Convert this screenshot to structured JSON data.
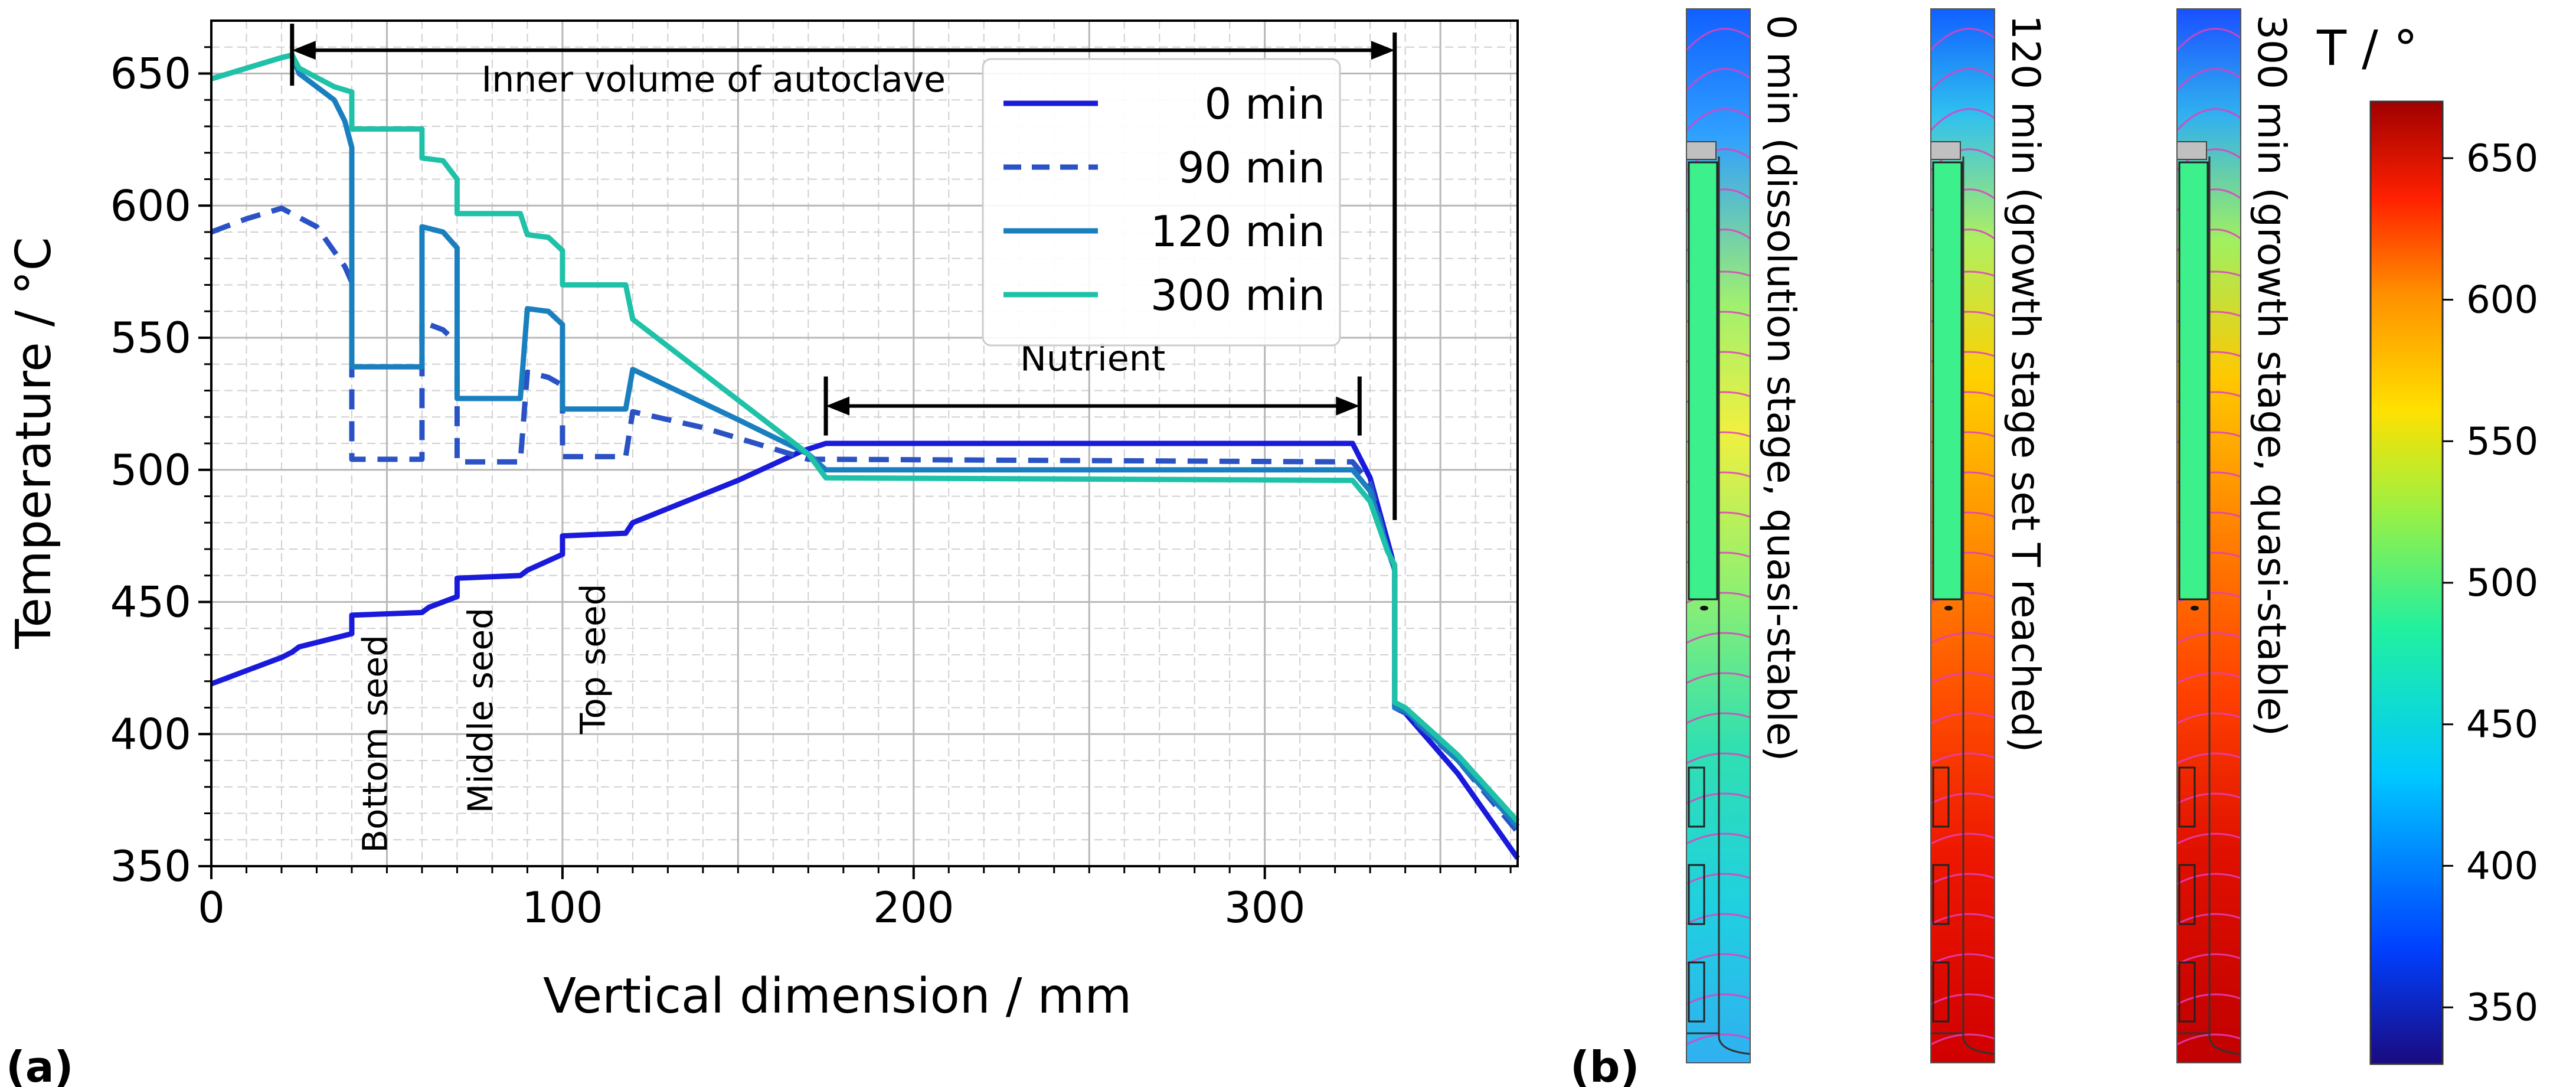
{
  "panel_a": {
    "label": "(a)",
    "chart_data": {
      "type": "line",
      "xlabel": "Vertical dimension / mm",
      "ylabel": "Temperature / °C",
      "xlim": [
        0,
        372
      ],
      "ylim": [
        350,
        670
      ],
      "xticks": [
        0,
        100,
        200,
        300
      ],
      "yticks": [
        350,
        400,
        450,
        500,
        550,
        600,
        650
      ],
      "grid": true,
      "legend_position": "top-right",
      "series": [
        {
          "name": "0 min",
          "color": "#1a1adb",
          "dash": "solid",
          "points": [
            [
              0,
              419
            ],
            [
              10,
              424
            ],
            [
              20,
              429
            ],
            [
              23,
              431
            ],
            [
              25,
              433
            ],
            [
              40,
              438
            ],
            [
              40,
              445
            ],
            [
              60,
              446
            ],
            [
              62,
              448
            ],
            [
              70,
              452
            ],
            [
              70,
              459
            ],
            [
              88,
              460
            ],
            [
              90,
              462
            ],
            [
              100,
              468
            ],
            [
              100,
              475
            ],
            [
              118,
              476
            ],
            [
              120,
              480
            ],
            [
              150,
              496
            ],
            [
              168,
              507
            ],
            [
              175,
              510
            ],
            [
              325,
              510
            ],
            [
              330,
              497
            ],
            [
              336,
              468
            ],
            [
              337,
              462
            ],
            [
              337,
              410
            ],
            [
              340,
              408
            ],
            [
              355,
              385
            ],
            [
              372,
              353
            ]
          ]
        },
        {
          "name": "90 min",
          "color": "#2a52c4",
          "dash": "dashed",
          "points": [
            [
              0,
              590
            ],
            [
              10,
              595
            ],
            [
              20,
              599
            ],
            [
              30,
              592
            ],
            [
              38,
              577
            ],
            [
              40,
              571
            ],
            [
              40,
              504
            ],
            [
              60,
              504
            ],
            [
              60,
              556
            ],
            [
              66,
              553
            ],
            [
              70,
              548
            ],
            [
              70,
              503
            ],
            [
              88,
              503
            ],
            [
              90,
              537
            ],
            [
              96,
              535
            ],
            [
              100,
              532
            ],
            [
              100,
              505
            ],
            [
              118,
              505
            ],
            [
              120,
              522
            ],
            [
              140,
              516
            ],
            [
              160,
              508
            ],
            [
              170,
              504
            ],
            [
              175,
              504
            ],
            [
              325,
              503
            ],
            [
              330,
              495
            ],
            [
              335,
              470
            ],
            [
              337,
              462
            ],
            [
              337,
              410
            ],
            [
              340,
              408
            ],
            [
              355,
              390
            ],
            [
              372,
              363
            ]
          ]
        },
        {
          "name": "120 min",
          "color": "#1a7fbf",
          "dash": "solid",
          "points": [
            [
              0,
              648
            ],
            [
              10,
              652
            ],
            [
              20,
              656
            ],
            [
              23,
              657
            ],
            [
              25,
              650
            ],
            [
              35,
              640
            ],
            [
              38,
              632
            ],
            [
              40,
              622
            ],
            [
              40,
              539
            ],
            [
              60,
              539
            ],
            [
              60,
              592
            ],
            [
              66,
              590
            ],
            [
              70,
              584
            ],
            [
              70,
              527
            ],
            [
              88,
              527
            ],
            [
              90,
              561
            ],
            [
              96,
              560
            ],
            [
              100,
              555
            ],
            [
              100,
              523
            ],
            [
              118,
              523
            ],
            [
              120,
              538
            ],
            [
              150,
              519
            ],
            [
              170,
              506
            ],
            [
              175,
              500
            ],
            [
              325,
              500
            ],
            [
              330,
              492
            ],
            [
              335,
              470
            ],
            [
              337,
              462
            ],
            [
              337,
              410
            ],
            [
              340,
              409
            ],
            [
              355,
              390
            ],
            [
              372,
              365
            ]
          ]
        },
        {
          "name": "300 min",
          "color": "#1fc2a8",
          "dash": "solid",
          "points": [
            [
              0,
              648
            ],
            [
              10,
              652
            ],
            [
              20,
              656
            ],
            [
              23,
              657
            ],
            [
              25,
              652
            ],
            [
              35,
              645
            ],
            [
              40,
              643
            ],
            [
              40,
              629
            ],
            [
              60,
              629
            ],
            [
              60,
              618
            ],
            [
              66,
              617
            ],
            [
              70,
              610
            ],
            [
              70,
              597
            ],
            [
              88,
              597
            ],
            [
              90,
              589
            ],
            [
              96,
              588
            ],
            [
              100,
              583
            ],
            [
              100,
              570
            ],
            [
              118,
              570
            ],
            [
              120,
              557
            ],
            [
              170,
              506
            ],
            [
              175,
              497
            ],
            [
              325,
              496
            ],
            [
              330,
              488
            ],
            [
              335,
              469
            ],
            [
              337,
              464
            ],
            [
              337,
              412
            ],
            [
              340,
              410
            ],
            [
              355,
              392
            ],
            [
              372,
              367
            ]
          ]
        }
      ],
      "annotations": [
        {
          "id": "inner",
          "text": "Inner volume of autoclave",
          "x_start": 23,
          "x_end": 337,
          "y": 657
        },
        {
          "id": "nutrient",
          "text": "Nutrient",
          "x_start": 175,
          "x_end": 327,
          "y": 513
        },
        {
          "id": "bottom_seed",
          "text": "Bottom seed",
          "x": 50,
          "y": 355
        },
        {
          "id": "middle_seed",
          "text": "Middle seed",
          "x": 80,
          "y": 370
        },
        {
          "id": "top_seed",
          "text": "Top seed",
          "x": 112,
          "y": 400
        }
      ]
    }
  },
  "panel_b": {
    "label": "(b)",
    "simulations": [
      {
        "caption": "0 min (dissolution stage, quasi-stable)",
        "top_temp": 380,
        "bottom_temp": 455
      },
      {
        "caption": "120 min (growth stage set T reached)",
        "top_temp": 440,
        "bottom_temp": 655
      },
      {
        "caption": "300 min (growth stage, quasi-stable)",
        "top_temp": 420,
        "bottom_temp": 660
      }
    ],
    "colorbar": {
      "title": "T / °",
      "range": [
        330,
        670
      ],
      "ticks": [
        350,
        400,
        450,
        500,
        550,
        600,
        650
      ],
      "colormap": [
        "#1a0a80",
        "#0040ff",
        "#00c8ff",
        "#20f0a0",
        "#a0f040",
        "#ffe000",
        "#ff9000",
        "#ff2000",
        "#a00000"
      ]
    }
  }
}
